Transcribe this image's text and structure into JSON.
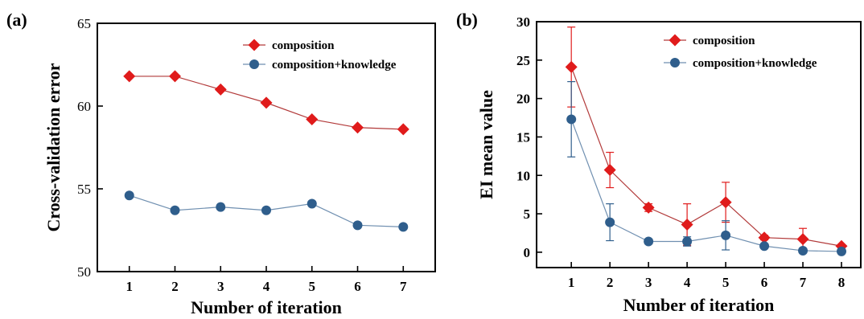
{
  "colors": {
    "composition": "#e01b1b",
    "composition_knowledge": "#2f5e8c",
    "composition_line": "#b23a3a",
    "composition_knowledge_line": "#6f8fb0"
  },
  "panels": [
    {
      "label": "(a)",
      "legend_position": "top-right"
    },
    {
      "label": "(b)",
      "legend_position": "top-right"
    }
  ],
  "chart_data": [
    {
      "type": "line",
      "xlabel": "Number of iteration",
      "ylabel": "Cross-validation error",
      "xlim": [
        0.3,
        7.7
      ],
      "ylim": [
        50,
        65
      ],
      "xticks": [
        1,
        2,
        3,
        4,
        5,
        6,
        7
      ],
      "yticks": [
        50,
        55,
        60,
        65
      ],
      "grid": false,
      "x": [
        1,
        2,
        3,
        4,
        5,
        6,
        7
      ],
      "series": [
        {
          "name": "composition",
          "marker": "diamond",
          "values": [
            61.8,
            61.8,
            61.0,
            60.2,
            59.2,
            58.7,
            58.6
          ]
        },
        {
          "name": "composition+knowledge",
          "marker": "circle",
          "values": [
            54.6,
            53.7,
            53.9,
            53.7,
            54.1,
            52.8,
            52.7
          ]
        }
      ]
    },
    {
      "type": "line",
      "xlabel": "Number of iteration",
      "ylabel": "EI mean value",
      "xlim": [
        0.1,
        8.5
      ],
      "ylim": [
        -2,
        30
      ],
      "xticks": [
        1,
        2,
        3,
        4,
        5,
        6,
        7,
        8
      ],
      "yticks": [
        0,
        5,
        10,
        15,
        20,
        25,
        30
      ],
      "grid": false,
      "x": [
        1,
        2,
        3,
        4,
        5,
        6,
        7,
        8
      ],
      "series": [
        {
          "name": "composition",
          "marker": "diamond",
          "values": [
            24.1,
            10.7,
            5.8,
            3.6,
            6.5,
            1.9,
            1.7,
            0.8
          ],
          "errors": [
            5.2,
            2.3,
            0.5,
            2.7,
            2.6,
            0.3,
            1.4,
            0.2
          ]
        },
        {
          "name": "composition+knowledge",
          "marker": "circle",
          "values": [
            17.3,
            3.9,
            1.4,
            1.4,
            2.2,
            0.8,
            0.2,
            0.1
          ],
          "errors": [
            4.9,
            2.4,
            0.3,
            0.6,
            1.9,
            0.2,
            0.3,
            0.1
          ]
        }
      ]
    }
  ]
}
